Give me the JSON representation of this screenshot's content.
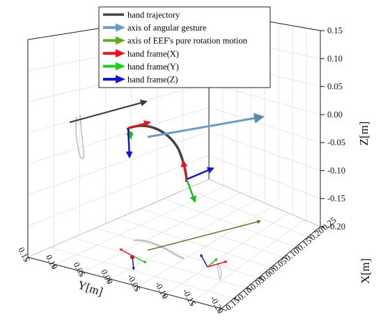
{
  "chart_data": {
    "type": "line",
    "projection": "3d",
    "x_axis": {
      "label": "X[m]",
      "range": [
        -0.15,
        0.25
      ],
      "ticks": [
        "0.25",
        "0.20",
        "0.15",
        "0.10",
        "0.05",
        "0.00",
        "-0.05",
        "-0.10",
        "-0.15"
      ]
    },
    "y_axis": {
      "label": "Y[m]",
      "range": [
        -0.2,
        0.15
      ],
      "ticks": [
        "0.15",
        "0.10",
        "0.05",
        "0.00",
        "-0.05",
        "-0.10",
        "-0.15",
        "-0.20"
      ]
    },
    "z_axis": {
      "label": "Z[m]",
      "range": [
        -0.2,
        0.15
      ],
      "ticks": [
        "0.15",
        "0.10",
        "0.05",
        "0.00",
        "-0.05",
        "-0.10",
        "-0.15",
        "-0.20"
      ]
    },
    "grid": true,
    "legend_position": "top",
    "series": [
      {
        "name": "hand trajectory",
        "color": "#444444",
        "kind": "line"
      },
      {
        "name": "axis of angular gesture",
        "color": "#6a9bc3",
        "kind": "arrow"
      },
      {
        "name": "axis of EEF's pure rotation motion",
        "color": "#66a81f",
        "kind": "arrow"
      },
      {
        "name": "hand frame(X)",
        "color": "#e8141c",
        "kind": "arrow"
      },
      {
        "name": "hand frame(Y)",
        "color": "#22cc22",
        "kind": "arrow"
      },
      {
        "name": "hand frame(Z)",
        "color": "#1414cc",
        "kind": "arrow"
      }
    ]
  }
}
